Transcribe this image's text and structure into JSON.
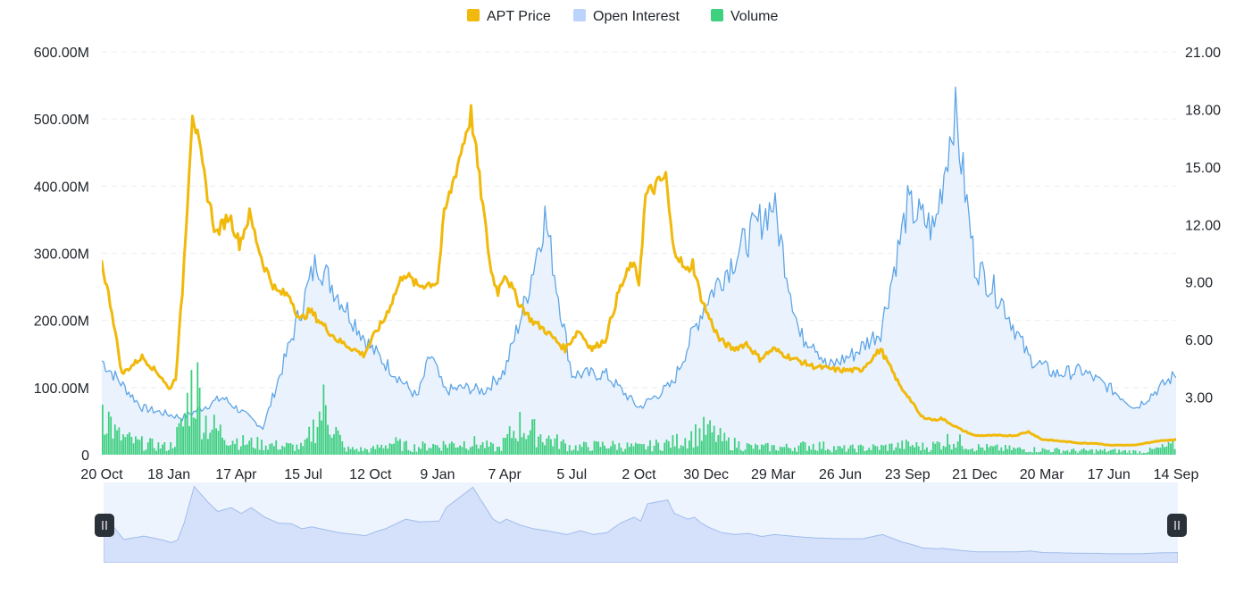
{
  "chart_data": {
    "type": "line",
    "legend": {
      "position": "top-center",
      "items": [
        {
          "name": "APT Price",
          "color": "#f0b90b"
        },
        {
          "name": "Open Interest",
          "color": "#bcd3fb"
        },
        {
          "name": "Volume",
          "color": "#3ecf7f"
        }
      ]
    },
    "x_tick_labels": [
      "20 Oct",
      "18 Jan",
      "17 Apr",
      "15 Jul",
      "12 Oct",
      "9 Jan",
      "7 Apr",
      "5 Jul",
      "2 Oct",
      "30 Dec",
      "29 Mar",
      "26 Jun",
      "23 Sep",
      "21 Dec",
      "20 Mar",
      "17 Jun",
      "14 Sep"
    ],
    "y_left": {
      "ticks": [
        "0",
        "100.00M",
        "200.00M",
        "300.00M",
        "400.00M",
        "500.00M",
        "600.00M"
      ],
      "range": [
        0,
        600
      ]
    },
    "y_right": {
      "ticks": [
        "3.00",
        "6.00",
        "9.00",
        "12.00",
        "15.00",
        "18.00",
        "21.00"
      ],
      "range": [
        0,
        21
      ]
    },
    "grid": "horizontal-dashed",
    "series": [
      {
        "name": "Open Interest",
        "axis": "left",
        "style": "area",
        "color": "#5ea5e6",
        "x": [
          0,
          0.6,
          1.2,
          1.8,
          2.4,
          3.2,
          4.0,
          4.7,
          4.9,
          5.1,
          5.4,
          5.7,
          6.0,
          6.3,
          6.6,
          7.0,
          7.5,
          8.0,
          8.5,
          9.0,
          9.5,
          10.0,
          10.4,
          10.6,
          10.8,
          11.2,
          11.6,
          12.0,
          12.4,
          12.7,
          13.0,
          13.4,
          13.8,
          14.2,
          14.6,
          15.0,
          15.4,
          15.7,
          16.0
        ],
        "values": [
          140,
          70,
          55,
          85,
          40,
          290,
          160,
          85,
          150,
          95,
          100,
          95,
          125,
          225,
          355,
          120,
          120,
          70,
          105,
          230,
          305,
          375,
          175,
          170,
          130,
          150,
          185,
          370,
          335,
          515,
          285,
          230,
          145,
          120,
          125,
          100,
          70,
          95,
          120
        ]
      },
      {
        "name": "APT Price",
        "axis": "right",
        "style": "line",
        "color": "#f0b90b",
        "x": [
          0,
          0.15,
          0.3,
          0.6,
          0.9,
          1.0,
          1.1,
          1.2,
          1.35,
          1.55,
          1.7,
          1.9,
          2.05,
          2.2,
          2.4,
          2.6,
          2.8,
          2.95,
          3.1,
          3.5,
          3.9,
          4.1,
          4.2,
          4.5,
          4.7,
          5.0,
          5.1,
          5.5,
          5.8,
          5.9,
          6.0,
          6.2,
          6.4,
          6.6,
          6.9,
          7.1,
          7.3,
          7.5,
          7.7,
          7.9,
          8.0,
          8.1,
          8.4,
          8.5,
          8.7,
          8.8,
          8.9,
          9.0,
          9.2,
          9.4,
          9.6,
          9.8,
          10.0,
          10.3,
          10.6,
          11.0,
          11.3,
          11.6,
          11.9,
          12.0,
          12.2,
          12.4,
          12.5,
          12.8,
          13.0,
          13.2,
          13.6,
          13.8,
          14.0,
          14.3,
          14.6,
          14.8,
          15.0,
          15.4,
          15.7,
          16.0
        ],
        "values": [
          10.0,
          7.5,
          4.2,
          5.1,
          4.0,
          3.4,
          4.0,
          8.5,
          18.0,
          14.0,
          11.5,
          12.5,
          11.0,
          12.5,
          10.0,
          8.5,
          8.3,
          7.0,
          7.5,
          6.0,
          5.2,
          6.5,
          7.0,
          9.5,
          8.8,
          9.0,
          12.5,
          17.8,
          9.5,
          8.5,
          9.5,
          8.0,
          7.0,
          6.5,
          5.5,
          6.5,
          5.5,
          6.0,
          8.5,
          10.0,
          9.0,
          13.5,
          14.5,
          11.0,
          9.5,
          10.0,
          8.5,
          7.5,
          6.0,
          5.5,
          5.8,
          5.0,
          5.5,
          5.0,
          4.6,
          4.4,
          4.4,
          5.5,
          3.5,
          3.1,
          2.0,
          1.8,
          1.9,
          1.3,
          1.0,
          1.0,
          1.0,
          1.2,
          0.8,
          0.7,
          0.6,
          0.6,
          0.5,
          0.5,
          0.7,
          0.8
        ]
      },
      {
        "name": "Volume",
        "axis": "left",
        "style": "bar",
        "color": "#3ecf7f",
        "x": [
          0,
          0.2,
          0.5,
          1.0,
          1.2,
          1.3,
          1.4,
          1.5,
          1.6,
          1.7,
          1.9,
          2.1,
          2.5,
          3.0,
          3.3,
          3.6,
          4.0,
          4.3,
          4.6,
          5.0,
          5.5,
          5.9,
          6.2,
          6.6,
          7.0,
          7.5,
          8.0,
          8.5,
          8.8,
          9.0,
          9.3,
          9.7,
          10.2,
          10.6,
          11.0,
          11.6,
          12.0,
          12.3,
          12.6,
          12.8,
          13.0,
          13.5,
          14.0,
          14.5,
          15.0,
          15.5,
          16.0
        ],
        "values": [
          105,
          40,
          25,
          15,
          60,
          130,
          145,
          75,
          60,
          50,
          35,
          25,
          20,
          15,
          100,
          12,
          10,
          25,
          15,
          20,
          25,
          12,
          60,
          35,
          15,
          20,
          15,
          25,
          40,
          50,
          25,
          15,
          15,
          20,
          12,
          15,
          20,
          15,
          30,
          25,
          15,
          12,
          10,
          8,
          8,
          6,
          20
        ]
      }
    ]
  }
}
